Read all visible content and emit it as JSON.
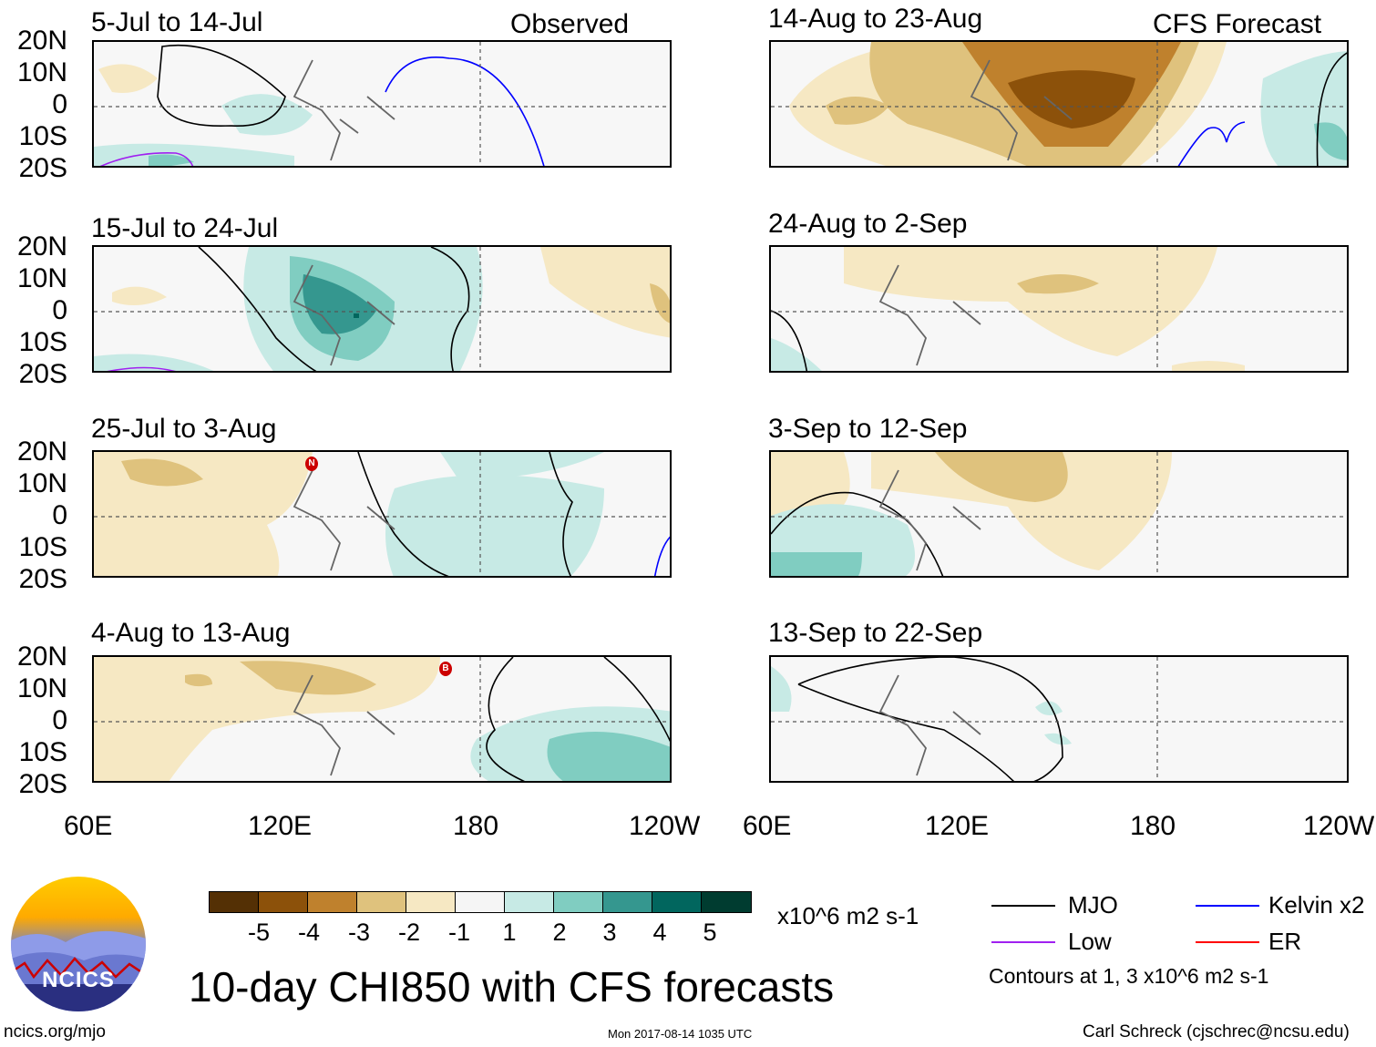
{
  "observed_label": "Observed",
  "forecast_label": "CFS Forecast",
  "latitude_labels": [
    "20N",
    "10N",
    "0",
    "10S",
    "20S"
  ],
  "longitude_labels": [
    "60E",
    "120E",
    "180",
    "120W"
  ],
  "last_longitude_label_right": "120W",
  "panels": [
    {
      "title": "5-Jul to 14-Jul"
    },
    {
      "title": "15-Jul to 24-Jul"
    },
    {
      "title": "25-Jul to 3-Aug"
    },
    {
      "title": "4-Aug to 13-Aug"
    },
    {
      "title": "14-Aug to 23-Aug"
    },
    {
      "title": "24-Aug to 2-Sep"
    },
    {
      "title": "3-Sep to 12-Sep"
    },
    {
      "title": "13-Sep to 22-Sep"
    }
  ],
  "storm_markers": [
    "N",
    "B"
  ],
  "colorbar": {
    "colors": [
      "#543005",
      "#8c510a",
      "#bf812d",
      "#dfc27d",
      "#f6e8c3",
      "#f5f5f5",
      "#c7eae5",
      "#80cdc1",
      "#35978f",
      "#01665e",
      "#003c30"
    ],
    "ticks": [
      "-5",
      "-4",
      "-3",
      "-2",
      "-1",
      "1",
      "2",
      "3",
      "4",
      "5"
    ],
    "units": "x10^6 m2 s-1"
  },
  "legend": {
    "mjo": "MJO",
    "kelvin": "Kelvin x2",
    "low": "Low",
    "er": "ER",
    "contours_note": "Contours at 1, 3 x10^6 m2 s-1",
    "colors": {
      "mjo": "#000000",
      "kelvin": "#0000ff",
      "low": "#a020f0",
      "er": "#ff0000"
    }
  },
  "main_title": "10-day CHI850 with CFS forecasts",
  "logo_text": "NCICS",
  "footer": {
    "url": "ncics.org/mjo",
    "timestamp": "Mon 2017-08-14 1035 UTC",
    "author": "Carl Schreck (cjschrec@ncsu.edu)"
  }
}
